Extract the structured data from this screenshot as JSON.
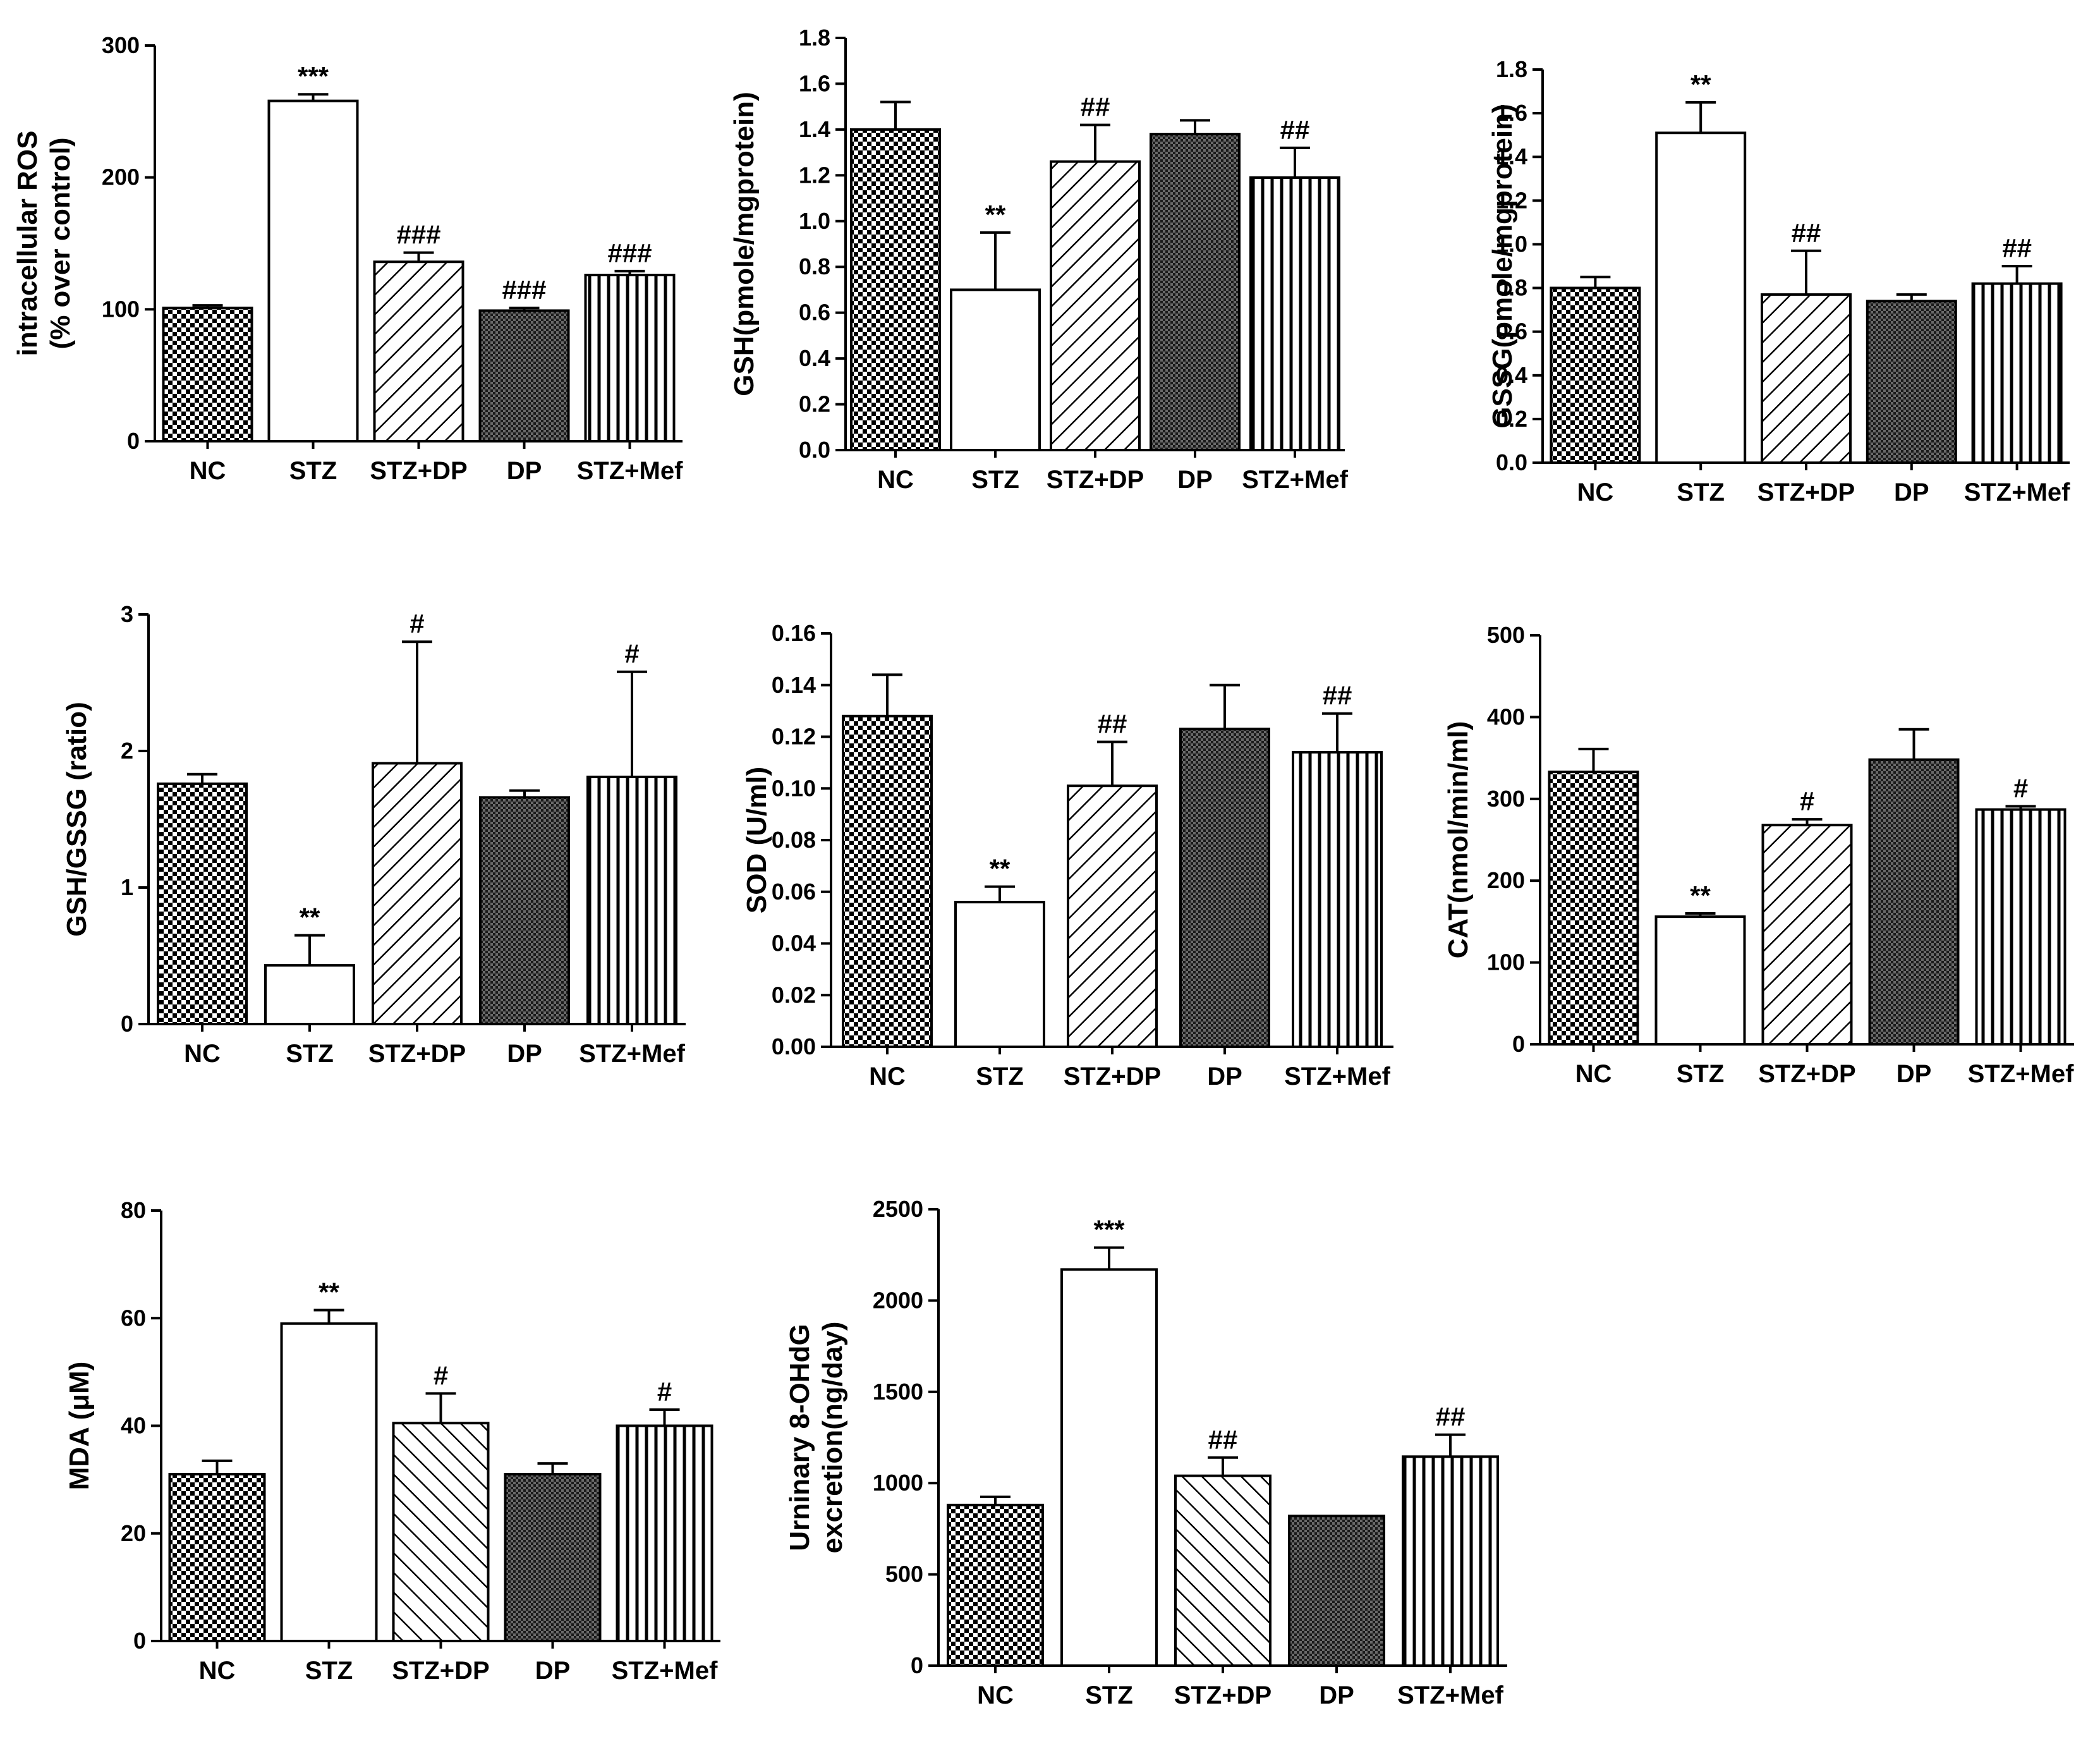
{
  "figure_title": "",
  "categories": [
    "NC",
    "STZ",
    "STZ+DP",
    "DP",
    "STZ+Mef"
  ],
  "chart_data": [
    {
      "type": "bar",
      "title": "",
      "categories": [
        "NC",
        "STZ",
        "STZ+DP",
        "DP",
        "STZ+Mef"
      ],
      "ylabel": [
        "intracellular ROS",
        "(% over control)"
      ],
      "xlabel": "",
      "ylim": [
        0,
        300
      ],
      "yticks": [
        0,
        100,
        200,
        300
      ],
      "ytick_labels": [
        "0",
        "100",
        "200",
        "300"
      ],
      "values": [
        101,
        258,
        136,
        99,
        126
      ],
      "errors": [
        2,
        5,
        7,
        2,
        3
      ],
      "annotations": [
        "",
        "***",
        "###",
        "###",
        "###"
      ],
      "patterns": [
        "checker",
        "open",
        "diag-right",
        "dots",
        "vert"
      ]
    },
    {
      "type": "bar",
      "title": "",
      "categories": [
        "NC",
        "STZ",
        "STZ+DP",
        "DP",
        "STZ+Mef"
      ],
      "ylabel": [
        "GSH(pmole/mgprotein)"
      ],
      "xlabel": "",
      "ylim": [
        0,
        1.8
      ],
      "yticks": [
        0,
        0.2,
        0.4,
        0.6,
        0.8,
        1.0,
        1.2,
        1.4,
        1.6,
        1.8
      ],
      "ytick_labels": [
        "0.0",
        "0.2",
        "0.4",
        "0.6",
        "0.8",
        "1.0",
        "1.2",
        "1.4",
        "1.6",
        "1.8"
      ],
      "values": [
        1.4,
        0.7,
        1.26,
        1.38,
        1.19
      ],
      "errors": [
        0.12,
        0.25,
        0.16,
        0.06,
        0.13
      ],
      "annotations": [
        "",
        "**",
        "##",
        "",
        "##"
      ],
      "patterns": [
        "checker",
        "open",
        "diag-right",
        "dots",
        "vert"
      ]
    },
    {
      "type": "bar",
      "title": "",
      "categories": [
        "NC",
        "STZ",
        "STZ+DP",
        "DP",
        "STZ+Mef"
      ],
      "ylabel": [
        "GSSG(pmole/mgprotein)"
      ],
      "xlabel": "",
      "ylim": [
        0,
        1.8
      ],
      "yticks": [
        0,
        0.2,
        0.4,
        0.6,
        0.8,
        1.0,
        1.2,
        1.4,
        1.6,
        1.8
      ],
      "ytick_labels": [
        "0.0",
        "0.2",
        "0.4",
        "0.6",
        "0.8",
        "1.0",
        "1.2",
        "1.4",
        "1.6",
        "1.8"
      ],
      "values": [
        0.8,
        1.51,
        0.77,
        0.74,
        0.82
      ],
      "errors": [
        0.05,
        0.14,
        0.2,
        0.03,
        0.08
      ],
      "annotations": [
        "",
        "**",
        "##",
        "",
        "##"
      ],
      "patterns": [
        "checker",
        "open",
        "diag-right",
        "dots",
        "vert"
      ]
    },
    {
      "type": "bar",
      "title": "",
      "categories": [
        "NC",
        "STZ",
        "STZ+DP",
        "DP",
        "STZ+Mef"
      ],
      "ylabel": [
        "GSH/GSSG (ratio)"
      ],
      "xlabel": "",
      "ylim": [
        0,
        3
      ],
      "yticks": [
        0,
        1,
        2,
        3
      ],
      "ytick_labels": [
        "0",
        "1",
        "2",
        "3"
      ],
      "values": [
        1.76,
        0.43,
        1.91,
        1.66,
        1.81
      ],
      "errors": [
        0.07,
        0.22,
        0.89,
        0.05,
        0.77
      ],
      "annotations": [
        "",
        "**",
        "#",
        "",
        "#"
      ],
      "patterns": [
        "checker",
        "open",
        "diag-right",
        "dots",
        "vert"
      ]
    },
    {
      "type": "bar",
      "title": "",
      "categories": [
        "NC",
        "STZ",
        "STZ+DP",
        "DP",
        "STZ+Mef"
      ],
      "ylabel": [
        "SOD (U/ml)"
      ],
      "xlabel": "",
      "ylim": [
        0,
        0.16
      ],
      "yticks": [
        0,
        0.02,
        0.04,
        0.06,
        0.08,
        0.1,
        0.12,
        0.14,
        0.16
      ],
      "ytick_labels": [
        "0.00",
        "0.02",
        "0.04",
        "0.06",
        "0.08",
        "0.10",
        "0.12",
        "0.14",
        "0.16"
      ],
      "values": [
        0.128,
        0.056,
        0.101,
        0.123,
        0.114
      ],
      "errors": [
        0.016,
        0.006,
        0.017,
        0.017,
        0.015
      ],
      "annotations": [
        "",
        "**",
        "##",
        "",
        "##"
      ],
      "patterns": [
        "checker",
        "open",
        "diag-right",
        "dots",
        "vert"
      ]
    },
    {
      "type": "bar",
      "title": "",
      "categories": [
        "NC",
        "STZ",
        "STZ+DP",
        "DP",
        "STZ+Mef"
      ],
      "ylabel": [
        "CAT(nmol/min/ml)"
      ],
      "xlabel": "",
      "ylim": [
        0,
        500
      ],
      "yticks": [
        0,
        100,
        200,
        300,
        400,
        500
      ],
      "ytick_labels": [
        "0",
        "100",
        "200",
        "300",
        "400",
        "500"
      ],
      "values": [
        333,
        156,
        268,
        348,
        287
      ],
      "errors": [
        28,
        4,
        7,
        37,
        4
      ],
      "annotations": [
        "",
        "**",
        "#",
        "",
        "#"
      ],
      "patterns": [
        "checker",
        "open",
        "diag-right",
        "dots",
        "vert"
      ]
    },
    {
      "type": "bar",
      "title": "",
      "categories": [
        "NC",
        "STZ",
        "STZ+DP",
        "DP",
        "STZ+Mef"
      ],
      "ylabel": [
        "MDA (μM)"
      ],
      "xlabel": "",
      "ylim": [
        0,
        80
      ],
      "yticks": [
        0,
        20,
        40,
        60,
        80
      ],
      "ytick_labels": [
        "0",
        "20",
        "40",
        "60",
        "80"
      ],
      "values": [
        31,
        59,
        40.5,
        31,
        40
      ],
      "errors": [
        2.5,
        2.5,
        5.5,
        2,
        3
      ],
      "annotations": [
        "",
        "**",
        "#",
        "",
        "#"
      ],
      "patterns": [
        "checker",
        "open",
        "diag-left",
        "dots",
        "vert"
      ]
    },
    {
      "type": "bar",
      "title": "",
      "categories": [
        "NC",
        "STZ",
        "STZ+DP",
        "DP",
        "STZ+Mef"
      ],
      "ylabel": [
        "Urninary 8-OHdG",
        "excretion(ng/day)"
      ],
      "xlabel": "",
      "ylim": [
        0,
        2500
      ],
      "yticks": [
        0,
        500,
        1000,
        1500,
        2000,
        2500
      ],
      "ytick_labels": [
        "0",
        "500",
        "1000",
        "1500",
        "2000",
        "2500"
      ],
      "values": [
        880,
        2170,
        1040,
        820,
        1145
      ],
      "errors": [
        45,
        120,
        100,
        0,
        120
      ],
      "annotations": [
        "",
        "***",
        "##",
        "",
        "##"
      ],
      "patterns": [
        "checker",
        "open",
        "diag-left",
        "dots",
        "vert"
      ]
    }
  ]
}
